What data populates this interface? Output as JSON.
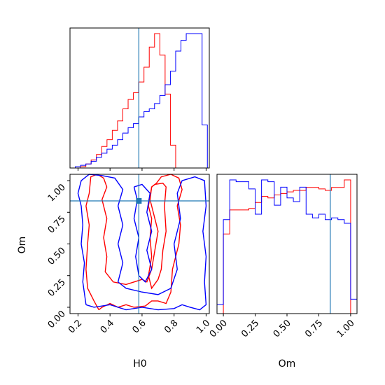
{
  "chart_data": {
    "type": "corner",
    "parameters": [
      "H0",
      "Om"
    ],
    "truth": {
      "H0": 0.58,
      "Om": 0.84
    },
    "colors": {
      "series_red": "#ff0000",
      "series_blue": "#0000ff",
      "truth": "#1f77b4"
    },
    "ranges": {
      "H0": [
        0.15,
        1.02
      ],
      "Om": [
        -0.05,
        1.05
      ]
    },
    "diag_H0": {
      "edges": [
        0.15,
        0.183,
        0.216,
        0.249,
        0.282,
        0.315,
        0.348,
        0.381,
        0.414,
        0.447,
        0.48,
        0.513,
        0.546,
        0.579,
        0.612,
        0.645,
        0.678,
        0.711,
        0.744,
        0.777,
        0.81,
        0.843,
        0.876,
        0.909,
        0.942,
        0.975,
        1.008
      ],
      "series": [
        {
          "name": "",
          "color": "#ff0000",
          "values": [
            0,
            0,
            1,
            3,
            6,
            10,
            16,
            21,
            28,
            35,
            44,
            51,
            56,
            64,
            75,
            90,
            100,
            84,
            55,
            17,
            0,
            0,
            0,
            0,
            0,
            0
          ]
        },
        {
          "name": "",
          "color": "#0000ff",
          "values": [
            0,
            1,
            2,
            3,
            5,
            8,
            11,
            14,
            17,
            21,
            26,
            30,
            33,
            38,
            42,
            44,
            48,
            54,
            62,
            72,
            87,
            95,
            100,
            100,
            100,
            32
          ]
        }
      ]
    },
    "diag_Om": {
      "edges": [
        -0.05,
        0.0,
        0.05,
        0.1,
        0.15,
        0.2,
        0.25,
        0.3,
        0.35,
        0.4,
        0.45,
        0.5,
        0.55,
        0.6,
        0.65,
        0.7,
        0.75,
        0.8,
        0.85,
        0.9,
        0.95,
        1.0,
        1.05
      ],
      "series": [
        {
          "name": "",
          "color": "#ff0000",
          "values": [
            0,
            53,
            69,
            69,
            69,
            70,
            74,
            78,
            77,
            79,
            80,
            81,
            82,
            82,
            84,
            84,
            83,
            82,
            84,
            84,
            89,
            0
          ]
        },
        {
          "name": "",
          "color": "#0000ff",
          "values": [
            5,
            52,
            74,
            73,
            73,
            69,
            55,
            74,
            73,
            60,
            70,
            64,
            62,
            70,
            55,
            53,
            55,
            52,
            53,
            52,
            50,
            8
          ]
        }
      ]
    },
    "contours_H0_Om": [
      {
        "name": "",
        "color": "#ff0000",
        "points": [
          [
            0.33,
            -0.02
          ],
          [
            0.35,
            0.0
          ],
          [
            0.4,
            0.03
          ],
          [
            0.45,
            0.0
          ],
          [
            0.5,
            0.02
          ],
          [
            0.55,
            0.0
          ],
          [
            0.62,
            0.01
          ],
          [
            0.66,
            0.05
          ],
          [
            0.7,
            0.05
          ],
          [
            0.75,
            0.03
          ],
          [
            0.78,
            0.12
          ],
          [
            0.79,
            0.3
          ],
          [
            0.83,
            0.5
          ],
          [
            0.84,
            0.65
          ],
          [
            0.82,
            0.8
          ],
          [
            0.85,
            0.93
          ],
          [
            0.83,
            1.02
          ],
          [
            0.78,
            1.05
          ],
          [
            0.72,
            1.03
          ],
          [
            0.69,
            0.98
          ],
          [
            0.66,
            0.95
          ],
          [
            0.65,
            0.85
          ],
          [
            0.67,
            0.75
          ],
          [
            0.7,
            0.6
          ],
          [
            0.68,
            0.45
          ],
          [
            0.66,
            0.3
          ],
          [
            0.63,
            0.2
          ],
          [
            0.6,
            0.22
          ],
          [
            0.55,
            0.2
          ],
          [
            0.5,
            0.18
          ],
          [
            0.42,
            0.2
          ],
          [
            0.37,
            0.28
          ],
          [
            0.38,
            0.4
          ],
          [
            0.36,
            0.55
          ],
          [
            0.38,
            0.7
          ],
          [
            0.35,
            0.85
          ],
          [
            0.38,
            0.95
          ],
          [
            0.36,
            1.02
          ],
          [
            0.32,
            1.05
          ],
          [
            0.28,
            1.03
          ],
          [
            0.27,
            0.9
          ],
          [
            0.25,
            0.8
          ],
          [
            0.27,
            0.65
          ],
          [
            0.26,
            0.5
          ],
          [
            0.25,
            0.3
          ],
          [
            0.26,
            0.15
          ],
          [
            0.3,
            0.05
          ],
          [
            0.33,
            -0.02
          ]
        ]
      },
      {
        "name": "",
        "color": "#ff0000",
        "points": [
          [
            0.66,
            0.95
          ],
          [
            0.68,
            0.97
          ],
          [
            0.73,
            0.98
          ],
          [
            0.75,
            0.95
          ],
          [
            0.74,
            0.8
          ],
          [
            0.75,
            0.6
          ],
          [
            0.73,
            0.45
          ],
          [
            0.72,
            0.3
          ],
          [
            0.7,
            0.22
          ],
          [
            0.66,
            0.15
          ],
          [
            0.64,
            0.25
          ],
          [
            0.66,
            0.4
          ],
          [
            0.65,
            0.55
          ],
          [
            0.66,
            0.7
          ],
          [
            0.64,
            0.8
          ],
          [
            0.66,
            0.95
          ]
        ]
      },
      {
        "name": "",
        "color": "#0000ff",
        "points": [
          [
            0.25,
            0.02
          ],
          [
            0.3,
            0.0
          ],
          [
            0.4,
            0.02
          ],
          [
            0.5,
            -0.02
          ],
          [
            0.6,
            0.0
          ],
          [
            0.7,
            -0.02
          ],
          [
            0.8,
            -0.01
          ],
          [
            0.85,
            0.02
          ],
          [
            0.9,
            0.0
          ],
          [
            0.96,
            -0.02
          ],
          [
            1.0,
            0.02
          ],
          [
            0.99,
            0.2
          ],
          [
            1.0,
            0.4
          ],
          [
            0.98,
            0.6
          ],
          [
            1.0,
            0.8
          ],
          [
            0.99,
            1.0
          ],
          [
            0.93,
            1.03
          ],
          [
            0.85,
            1.0
          ],
          [
            0.82,
            0.9
          ],
          [
            0.84,
            0.7
          ],
          [
            0.8,
            0.5
          ],
          [
            0.82,
            0.3
          ],
          [
            0.78,
            0.15
          ],
          [
            0.7,
            0.1
          ],
          [
            0.6,
            0.12
          ],
          [
            0.5,
            0.15
          ],
          [
            0.45,
            0.2
          ],
          [
            0.48,
            0.35
          ],
          [
            0.45,
            0.5
          ],
          [
            0.48,
            0.65
          ],
          [
            0.45,
            0.8
          ],
          [
            0.48,
            0.93
          ],
          [
            0.43,
            1.02
          ],
          [
            0.35,
            1.04
          ],
          [
            0.27,
            1.05
          ],
          [
            0.22,
            1.0
          ],
          [
            0.2,
            0.9
          ],
          [
            0.22,
            0.8
          ],
          [
            0.23,
            0.65
          ],
          [
            0.22,
            0.5
          ],
          [
            0.24,
            0.35
          ],
          [
            0.23,
            0.2
          ],
          [
            0.25,
            0.02
          ]
        ]
      },
      {
        "name": "",
        "color": "#0000ff",
        "points": [
          [
            0.55,
            0.95
          ],
          [
            0.6,
            0.97
          ],
          [
            0.65,
            0.9
          ],
          [
            0.63,
            0.75
          ],
          [
            0.66,
            0.6
          ],
          [
            0.63,
            0.45
          ],
          [
            0.66,
            0.3
          ],
          [
            0.62,
            0.2
          ],
          [
            0.58,
            0.25
          ],
          [
            0.56,
            0.4
          ],
          [
            0.58,
            0.55
          ],
          [
            0.55,
            0.7
          ],
          [
            0.57,
            0.85
          ],
          [
            0.55,
            0.95
          ]
        ]
      }
    ],
    "xlabels": [
      "H0",
      "Om"
    ],
    "ylabel_lower_left": "Om",
    "ticks_H0": [
      0.2,
      0.4,
      0.6,
      0.8,
      1.0
    ],
    "ticks_H0_labels": [
      "0.2",
      "0.4",
      "0.6",
      "0.8",
      "1.0"
    ],
    "ticks_Om": [
      0.0,
      0.25,
      0.5,
      0.75,
      1.0
    ],
    "ticks_Om_labels": [
      "0.00",
      "0.25",
      "0.50",
      "0.75",
      "1.00"
    ],
    "grid": false
  }
}
